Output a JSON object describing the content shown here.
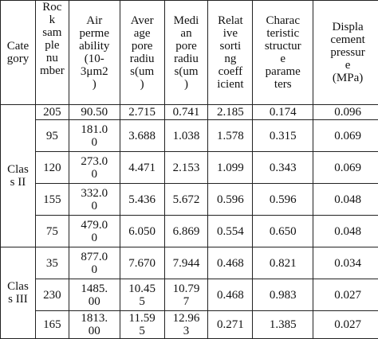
{
  "table": {
    "headers": [
      "Cate\ngory",
      "Roc\nk\nsam\nple\nnu\nmber",
      "Air\nperme\nability\n(10-\n3μm2\n)",
      "Aver\nage\npore\nradiu\ns(um\n)",
      "Medi\nan\npore\nradiu\ns(um\n)",
      "Relat\nive\nsorti\nng\ncoeff\nicient",
      "Charac\nteristic\nstructur\ne\nparame\nters",
      "Displa\ncement\npressur\ne\n(MPa)"
    ],
    "groups": [
      {
        "category": "Clas\ns II",
        "rows": [
          [
            "205",
            "90.50",
            "2.715",
            "0.741",
            "2.185",
            "0.174",
            "0.096"
          ],
          [
            "95",
            "181.0\n0",
            "3.688",
            "1.038",
            "1.578",
            "0.315",
            "0.069"
          ],
          [
            "120",
            "273.0\n0",
            "4.471",
            "2.153",
            "1.099",
            "0.343",
            "0.069"
          ],
          [
            "155",
            "332.0\n0",
            "5.436",
            "5.672",
            "0.596",
            "0.596",
            "0.048"
          ],
          [
            "75",
            "479.0\n0",
            "6.050",
            "6.869",
            "0.554",
            "0.650",
            "0.048"
          ]
        ]
      },
      {
        "category": "Clas\ns III",
        "rows": [
          [
            "35",
            "877.0\n0",
            "7.670",
            "7.944",
            "0.468",
            "0.821",
            "0.034"
          ],
          [
            "230",
            "1485.\n00",
            "10.45\n5",
            "10.79\n7",
            "0.468",
            "0.983",
            "0.027"
          ],
          [
            "165",
            "1813.\n00",
            "11.59\n5",
            "12.96\n3",
            "0.271",
            "1.385",
            "0.027"
          ]
        ]
      }
    ]
  }
}
